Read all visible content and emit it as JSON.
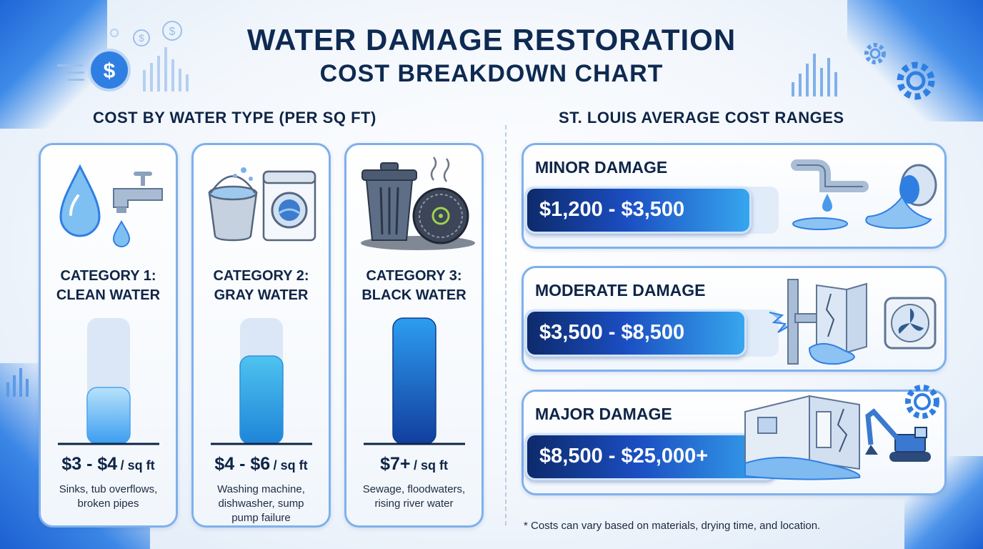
{
  "title": {
    "line1": "WATER DAMAGE RESTORATION",
    "line2": "COST BREAKDOWN CHART"
  },
  "left_section": {
    "heading": "COST BY WATER TYPE (PER SQ FT)",
    "cards": [
      {
        "category_line1": "CATEGORY 1:",
        "category_line2": "CLEAN WATER",
        "price_main": "$3 - $4",
        "price_unit": "/ sq ft",
        "desc_line1": "Sinks, tub overflows,",
        "desc_line2": "broken pipes",
        "desc_line3": "",
        "icons": [
          "water-drop-icon",
          "faucet-icon"
        ]
      },
      {
        "category_line1": "CATEGORY 2:",
        "category_line2": "GRAY WATER",
        "price_main": "$4 - $6",
        "price_unit": "/ sq ft",
        "desc_line1": "Washing machine,",
        "desc_line2": "dishwasher, sump",
        "desc_line3": "pump failure",
        "icons": [
          "bucket-icon",
          "washing-machine-icon"
        ]
      },
      {
        "category_line1": "CATEGORY 3:",
        "category_line2": "BLACK WATER",
        "price_main": "$7+",
        "price_unit": "/ sq ft",
        "desc_line1": "Sewage, floodwaters,",
        "desc_line2": "rising river water",
        "desc_line3": "",
        "icons": [
          "trash-can-icon",
          "biohazard-drain-icon"
        ]
      }
    ]
  },
  "right_section": {
    "heading": "ST. LOUIS AVERAGE COST RANGES",
    "panels": [
      {
        "label": "MINOR DAMAGE",
        "range": "$1,200 - $3,500",
        "icons": [
          "leaking-pipe-icon",
          "spilled-pipe-icon"
        ]
      },
      {
        "label": "MODERATE DAMAGE",
        "range": "$3,500 - $8,500",
        "icons": [
          "burst-pipe-icon",
          "cracked-wall-icon",
          "fan-icon"
        ]
      },
      {
        "label": "MAJOR DAMAGE",
        "range": "$8,500 - $25,000+",
        "icons": [
          "flooded-room-icon",
          "excavator-icon",
          "gear-icon"
        ]
      }
    ]
  },
  "footnote": "* Costs can vary based on materials, drying time, and location.",
  "colors": {
    "navy": "#0f2547",
    "accent": "#2f7fe3",
    "card_border": "#7fb0ec"
  },
  "chart_data": [
    {
      "type": "bar",
      "categories": [
        "CATEGORY 1: CLEAN WATER",
        "CATEGORY 2: GRAY WATER",
        "CATEGORY 3: BLACK WATER"
      ],
      "values": [
        0.45,
        0.7,
        1.0
      ],
      "value_labels": [
        "$3 - $4 / sq ft",
        "$4 - $6 / sq ft",
        "$7+ / sq ft"
      ],
      "title": "COST BY WATER TYPE (PER SQ FT)",
      "xlabel": "",
      "ylabel": ""
    },
    {
      "type": "bar",
      "orientation": "horizontal",
      "categories": [
        "MINOR DAMAGE",
        "MODERATE DAMAGE",
        "MAJOR DAMAGE"
      ],
      "values": [
        0.9,
        0.88,
        1.0
      ],
      "value_labels": [
        "$1,200 - $3,500",
        "$3,500 - $8,500",
        "$8,500 - $25,000+"
      ],
      "title": "ST. LOUIS AVERAGE COST RANGES",
      "xlabel": "",
      "ylabel": ""
    }
  ]
}
